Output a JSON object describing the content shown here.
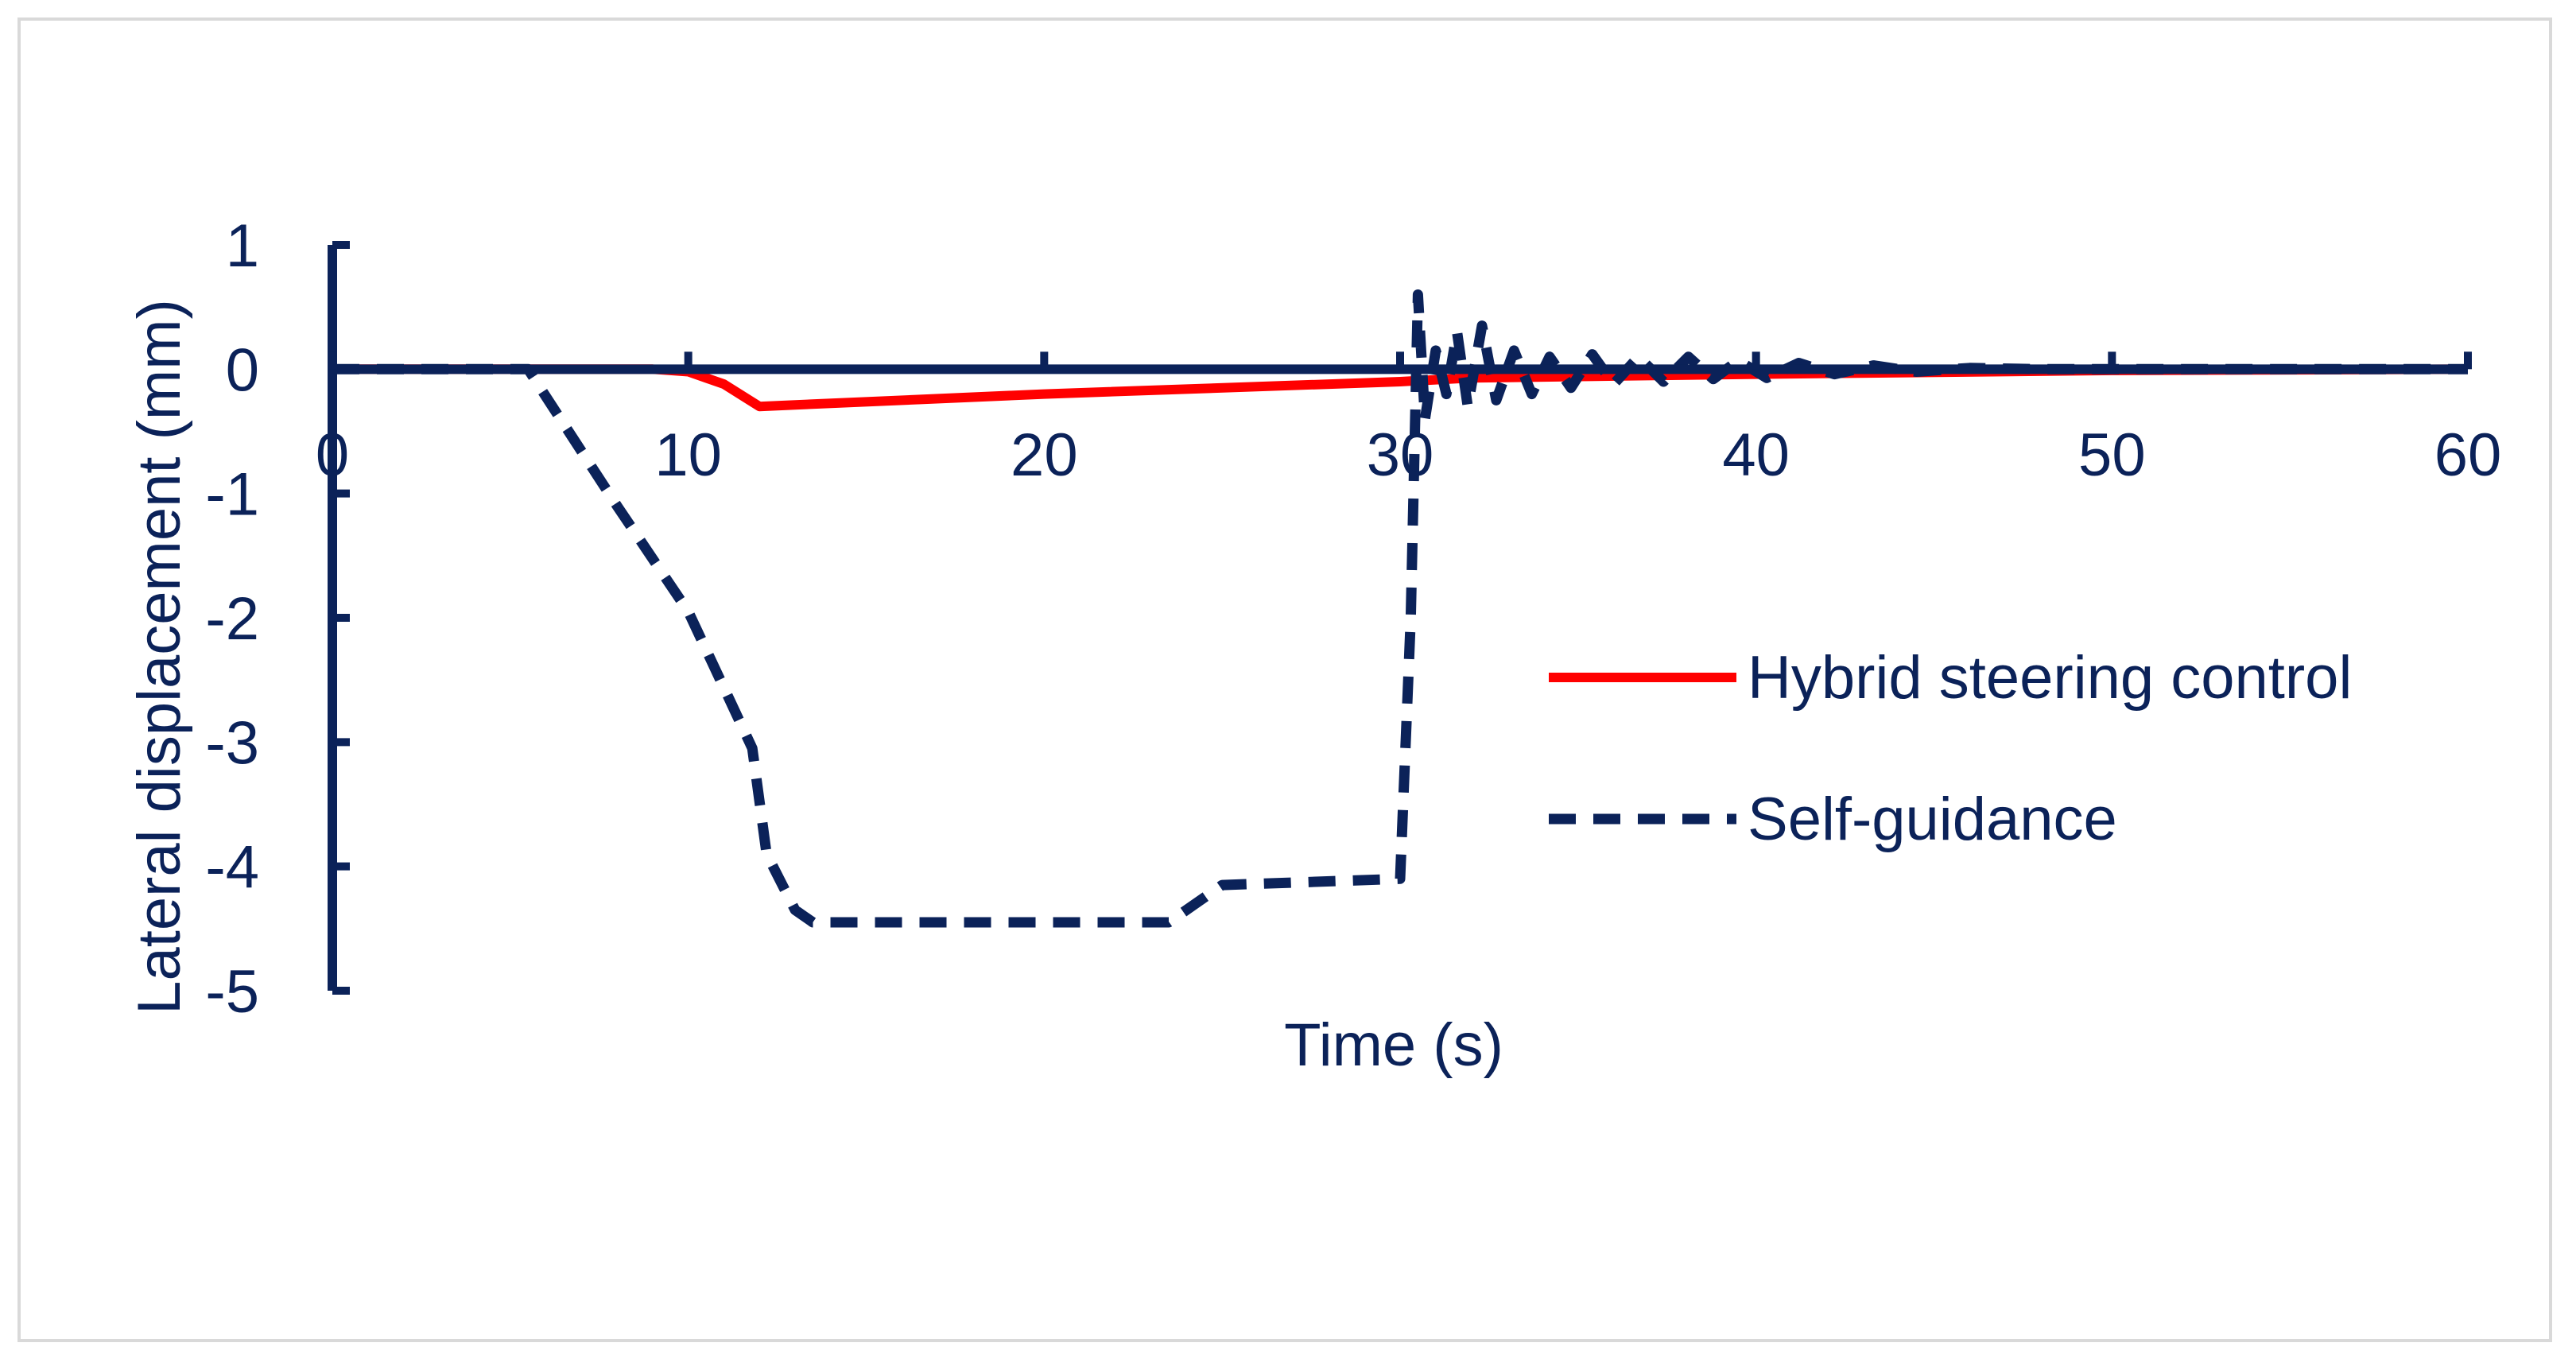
{
  "chart_data": {
    "type": "line",
    "title": "",
    "xlabel": "Time (s)",
    "ylabel": "Lateral displacement (mm)",
    "xlim": [
      0,
      60
    ],
    "ylim": [
      -5,
      1
    ],
    "xticks": [
      0,
      10,
      20,
      30,
      40,
      50,
      60
    ],
    "yticks": [
      1,
      0,
      -1,
      -2,
      -3,
      -4,
      -5
    ],
    "grid": false,
    "legend_position": "right",
    "series": [
      {
        "name": "Hybrid steering control",
        "style": "solid",
        "color": "#ff0000",
        "points": [
          [
            0,
            0
          ],
          [
            9,
            0
          ],
          [
            10,
            -0.02
          ],
          [
            11,
            -0.12
          ],
          [
            12,
            -0.3
          ],
          [
            20,
            -0.2
          ],
          [
            30,
            -0.1
          ],
          [
            32,
            -0.07
          ],
          [
            40,
            -0.04
          ],
          [
            50,
            -0.01
          ],
          [
            60,
            0
          ]
        ]
      },
      {
        "name": "Self-guidance",
        "style": "dashed",
        "color": "#0b2259",
        "points": [
          [
            0,
            0
          ],
          [
            5.5,
            0
          ],
          [
            8,
            -1.1
          ],
          [
            10,
            -1.95
          ],
          [
            11.8,
            -3.05
          ],
          [
            12.2,
            -3.9
          ],
          [
            13,
            -4.35
          ],
          [
            13.5,
            -4.45
          ],
          [
            23.5,
            -4.45
          ],
          [
            25,
            -4.15
          ],
          [
            30,
            -4.1
          ],
          [
            30.3,
            -2.0
          ],
          [
            30.5,
            0.6
          ],
          [
            30.7,
            -0.4
          ],
          [
            31,
            0.15
          ],
          [
            31.3,
            -0.2
          ],
          [
            31.6,
            0.3
          ],
          [
            31.9,
            -0.3
          ],
          [
            32.3,
            0.35
          ],
          [
            32.7,
            -0.25
          ],
          [
            33.2,
            0.15
          ],
          [
            33.7,
            -0.2
          ],
          [
            34.2,
            0.1
          ],
          [
            34.8,
            -0.15
          ],
          [
            35.4,
            0.12
          ],
          [
            36,
            -0.12
          ],
          [
            36.7,
            0.1
          ],
          [
            37.4,
            -0.1
          ],
          [
            38.1,
            0.1
          ],
          [
            38.8,
            -0.08
          ],
          [
            39.5,
            0.07
          ],
          [
            40.3,
            -0.07
          ],
          [
            41.2,
            0.05
          ],
          [
            42.2,
            -0.04
          ],
          [
            43.3,
            0.03
          ],
          [
            44.5,
            -0.02
          ],
          [
            46,
            0.01
          ],
          [
            48,
            0
          ],
          [
            60,
            0
          ]
        ]
      }
    ]
  }
}
